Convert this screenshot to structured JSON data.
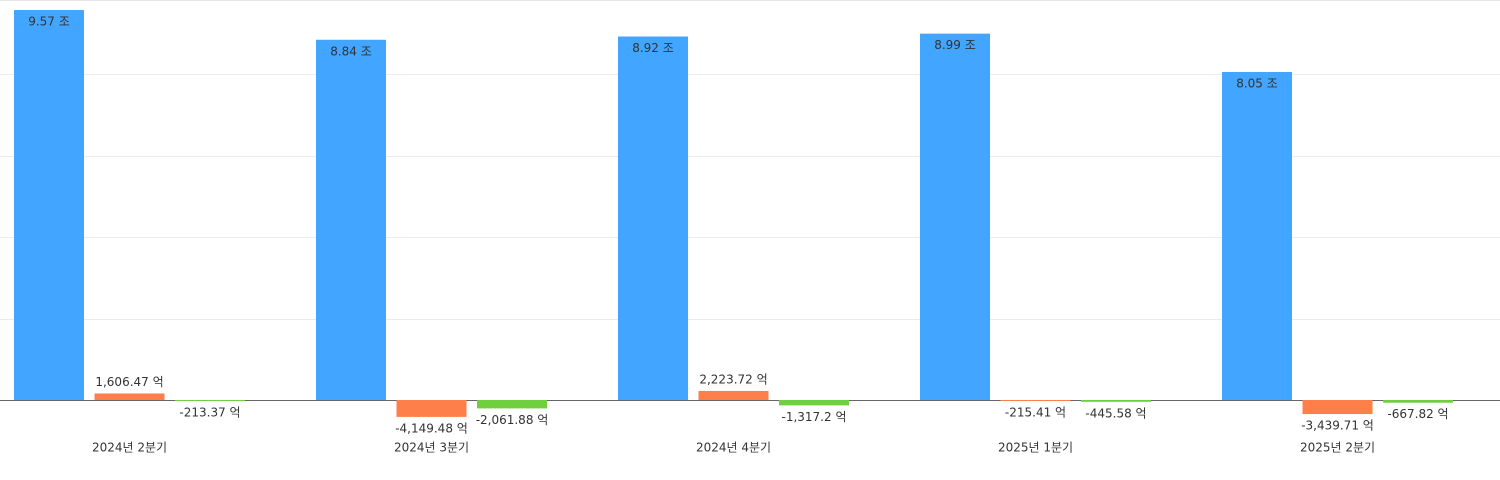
{
  "chart_data": {
    "type": "bar",
    "categories": [
      "2024년 2분기",
      "2024년 3분기",
      "2024년 4분기",
      "2025년 1분기",
      "2025년 2분기"
    ],
    "series": [
      {
        "color": "#42a5ff",
        "values": [
          95700,
          88400,
          89200,
          89900,
          80500
        ],
        "value_labels": [
          "9.57 조",
          "8.84 조",
          "8.92 조",
          "8.99 조",
          "8.05 조"
        ]
      },
      {
        "color": "#ff7f4a",
        "values": [
          1606.47,
          -4149.48,
          2223.72,
          -215.41,
          -3439.71
        ],
        "value_labels": [
          "1,606.47 억",
          "-4,149.48 억",
          "2,223.72 억",
          "-215.41 억",
          "-3,439.71 억"
        ]
      },
      {
        "color": "#6fcf3f",
        "values": [
          -213.37,
          -2061.88,
          -1317.2,
          -445.58,
          -667.82
        ],
        "value_labels": [
          "-213.37 억",
          "-2,061.88 억",
          "-1,317.2 억",
          "-445.58 억",
          "-667.82 억"
        ]
      }
    ],
    "ylim": [
      -20000,
      100000
    ],
    "yticks": [
      0,
      20000,
      40000,
      60000,
      80000
    ],
    "grid": true
  }
}
